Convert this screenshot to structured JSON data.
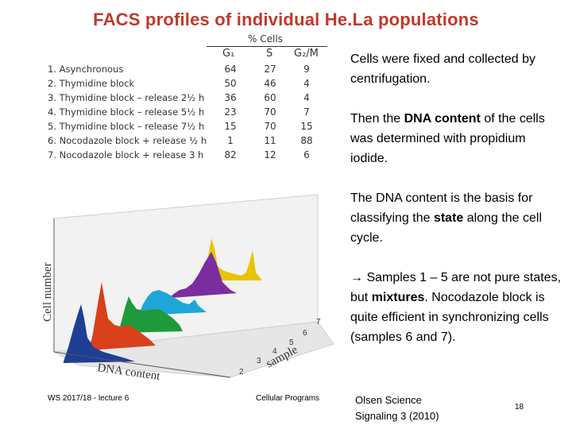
{
  "title": "FACS profiles of individual He.La populations",
  "table": {
    "header": "% Cells",
    "columns": [
      "G₁",
      "S",
      "G₂/M"
    ],
    "rows": [
      {
        "label": "1. Asynchronous",
        "g1": "64",
        "s": "27",
        "g2m": "9"
      },
      {
        "label": "2. Thymidine block",
        "g1": "50",
        "s": "46",
        "g2m": "4"
      },
      {
        "label": "3. Thymidine block – release 2½ h",
        "g1": "36",
        "s": "60",
        "g2m": "4"
      },
      {
        "label": "4. Thymidine block – release 5½ h",
        "g1": "23",
        "s": "70",
        "g2m": "7"
      },
      {
        "label": "5. Thymidine block – release 7½ h",
        "g1": "15",
        "s": "70",
        "g2m": "15"
      },
      {
        "label": "6. Nocodazole block + release ½ h",
        "g1": "1",
        "s": "11",
        "g2m": "88"
      },
      {
        "label": "7. Nocodazole block + release 3 h",
        "g1": "82",
        "s": "12",
        "g2m": "6"
      }
    ]
  },
  "figure": {
    "ylabel": "Cell number",
    "xlabel": "DNA content",
    "zlabel": "sample",
    "sample_labels": [
      "2",
      "3",
      "4",
      "5",
      "6",
      "7"
    ],
    "series_colors": [
      "#1f3f94",
      "#d8411b",
      "#1e9a3a",
      "#1fa6d8",
      "#7a2ea0",
      "#e8c400"
    ]
  },
  "paragraphs": {
    "p1": "Cells were fixed and collected by centrifugation.",
    "p2_pre": "Then the ",
    "p2_bold": "DNA content",
    "p2_post": " of the cells was determined with propidium iodide.",
    "p3_pre": "The DNA content is the basis for classifying the ",
    "p3_bold": "state",
    "p3_post": " along the cell cycle.",
    "p4_pre": "→ Samples 1 – 5 are not pure states, but ",
    "p4_bold": "mixtures",
    "p4_post": ". Nocodazole block is quite efficient in synchronizing cells (samples 6 and 7)."
  },
  "footer": {
    "left": "WS 2017/18 - lecture 6",
    "mid": "Cellular Programs",
    "cite_line1": "Olsen Science",
    "cite_line2": "Signaling 3 (2010)",
    "page": "18"
  }
}
